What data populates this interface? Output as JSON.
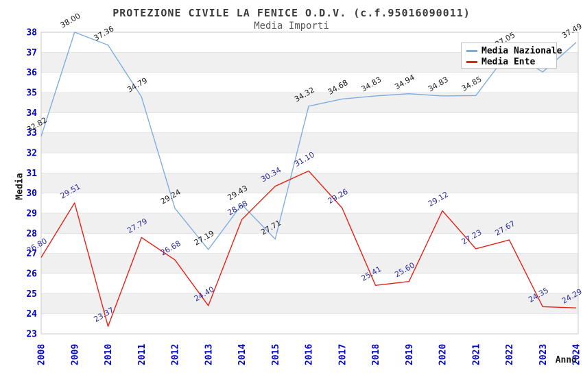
{
  "header": {
    "title": "PROTEZIONE CIVILE LA FENICE O.D.V. (c.f.95016090011)",
    "subtitle": "Media Importi"
  },
  "chart_data": {
    "type": "line",
    "title": "PROTEZIONE CIVILE LA FENICE O.D.V. (c.f.95016090011)",
    "subtitle": "Media Importi",
    "xlabel": "Anno",
    "ylabel": "Media",
    "x": [
      2008,
      2009,
      2010,
      2011,
      2012,
      2013,
      2014,
      2015,
      2016,
      2017,
      2018,
      2019,
      2020,
      2021,
      2022,
      2023,
      2024
    ],
    "yticks": [
      23,
      24,
      25,
      26,
      27,
      28,
      29,
      30,
      31,
      32,
      33,
      34,
      35,
      36,
      37,
      38
    ],
    "ylim": [
      23,
      38
    ],
    "grid": "horizontal-alternating-bands",
    "legend_position": "top-right-inside",
    "series": [
      {
        "name": "Media Nazionale",
        "color": "#7FADE0",
        "label_color": "#1A1A1A",
        "values": [
          32.82,
          38.0,
          37.36,
          34.79,
          29.24,
          27.19,
          29.43,
          27.71,
          34.32,
          34.68,
          34.83,
          34.94,
          34.83,
          34.85,
          37.05,
          36.02,
          37.49
        ]
      },
      {
        "name": "Media Ente",
        "color": "#E92017",
        "label_color": "#2A2A9C",
        "values": [
          26.8,
          29.51,
          23.37,
          27.79,
          26.68,
          24.4,
          28.68,
          30.34,
          31.1,
          29.26,
          25.41,
          25.6,
          29.12,
          27.23,
          27.67,
          24.35,
          24.29
        ]
      }
    ],
    "colors": {
      "band": "#F0F0F0",
      "grid": "#E4E4E4",
      "border": "#C8C8C8",
      "tick": "#0000CC"
    }
  }
}
